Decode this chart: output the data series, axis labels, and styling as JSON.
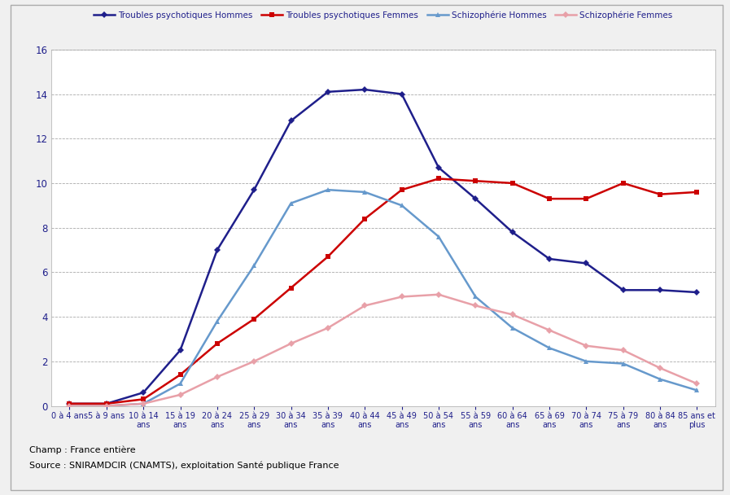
{
  "categories_line1": [
    "0 à 4 ans",
    "5 à 9 ans",
    "10 à 14",
    "15 à 19",
    "20 à 24",
    "25 à 29",
    "30 à 34",
    "35 à 39",
    "40 à 44",
    "45 à 49",
    "50 à 54",
    "55 à 59",
    "60 à 64",
    "65 à 69",
    "70 à 74",
    "75 à 79",
    "80 à 84",
    "85 ans et"
  ],
  "categories_line2": [
    "",
    "",
    "ans",
    "ans",
    "ans",
    "ans",
    "ans",
    "ans",
    "ans",
    "ans",
    "ans",
    "ans",
    "ans",
    "ans",
    "ans",
    "ans",
    "ans",
    "plus"
  ],
  "troubles_hommes": [
    0.1,
    0.1,
    0.6,
    2.5,
    7.0,
    9.7,
    12.8,
    14.1,
    14.2,
    14.0,
    10.7,
    9.3,
    7.8,
    6.6,
    6.4,
    5.2,
    5.2,
    5.1
  ],
  "troubles_femmes": [
    0.1,
    0.1,
    0.3,
    1.4,
    2.8,
    3.9,
    5.3,
    6.7,
    8.4,
    9.7,
    10.2,
    10.1,
    10.0,
    9.3,
    9.3,
    10.0,
    9.5,
    9.6
  ],
  "schizo_hommes": [
    0.0,
    0.0,
    0.1,
    1.0,
    3.8,
    6.3,
    9.1,
    9.7,
    9.6,
    9.0,
    7.6,
    4.9,
    3.5,
    2.6,
    2.0,
    1.9,
    1.2,
    0.7
  ],
  "schizo_femmes": [
    0.0,
    0.0,
    0.1,
    0.5,
    1.3,
    2.0,
    2.8,
    3.5,
    4.5,
    4.9,
    5.0,
    4.5,
    4.1,
    3.4,
    2.7,
    2.5,
    1.7,
    1.0
  ],
  "color_troubles_hommes": "#1F1F8B",
  "color_troubles_femmes": "#CC0000",
  "color_schizo_hommes": "#6699CC",
  "color_schizo_femmes": "#E8A0A8",
  "legend_labels": [
    "Troubles psychotiques Hommes",
    "Troubles psychotiques Femmes",
    "Schizophérie Hommes",
    "Schizophérie Femmes"
  ],
  "ylim": [
    0,
    16
  ],
  "yticks": [
    0,
    2,
    4,
    6,
    8,
    10,
    12,
    14,
    16
  ],
  "footer_line1": "Champ : France entière",
  "footer_line2": "Source : SNIRAMDCIR (CNAMTS), exploitation Santé publique France",
  "bg_color": "#F0F0F0",
  "plot_bg_color": "#FFFFFF",
  "grid_color": "#AAAAAA",
  "outer_border_color": "#AAAAAA"
}
